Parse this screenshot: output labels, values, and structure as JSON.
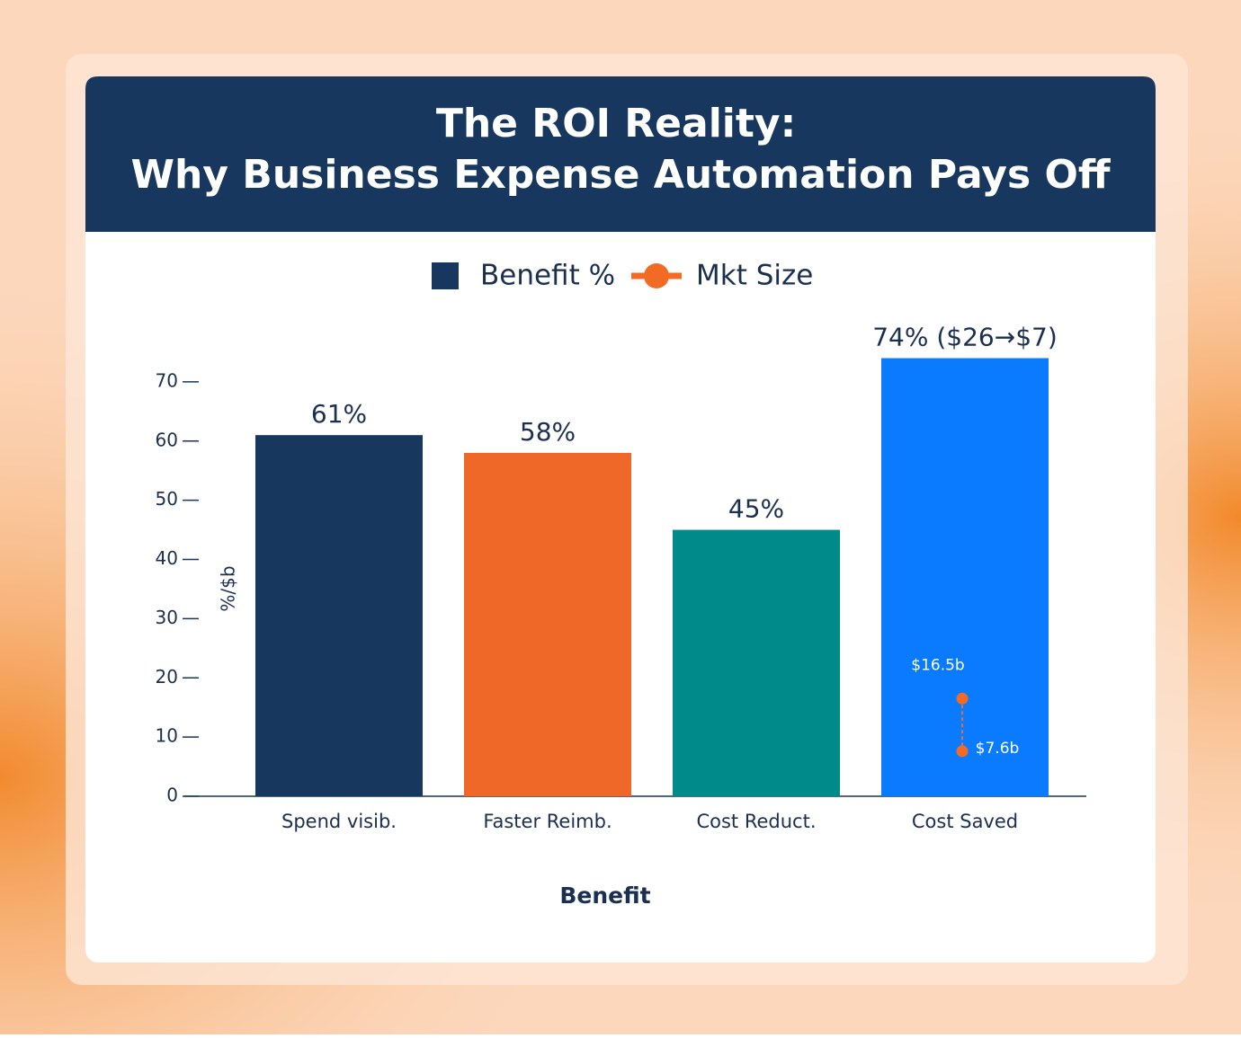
{
  "chart_data": {
    "type": "bar",
    "title": [
      "The ROI Reality:",
      "Why Business Expense Automation Pays Off"
    ],
    "x_label": "Benefit",
    "y_label": "%/$b",
    "categories": [
      "Spend visib.",
      "Faster Reimb.",
      "Cost Reduct.",
      "Cost Saved"
    ],
    "series": [
      {
        "name": "Benefit %",
        "color": "#17375e",
        "values": [
          61,
          58,
          45,
          74
        ],
        "value_labels": [
          "61%",
          "58%",
          "45%",
          "74% ($26→$7)"
        ],
        "colors": [
          "#17375e",
          "#f06827",
          "#008b8b",
          "#0a7bff"
        ]
      }
    ],
    "mkt_size": {
      "name": "Mkt Size",
      "color": "#f26b25",
      "values": [
        16.5,
        7.6
      ],
      "value_labels": [
        "$16.5b",
        "$7.6b"
      ]
    },
    "ylim": [
      0,
      80
    ],
    "yticks": [
      0,
      10,
      20,
      30,
      40,
      50,
      60,
      70
    ],
    "grid": false
  }
}
